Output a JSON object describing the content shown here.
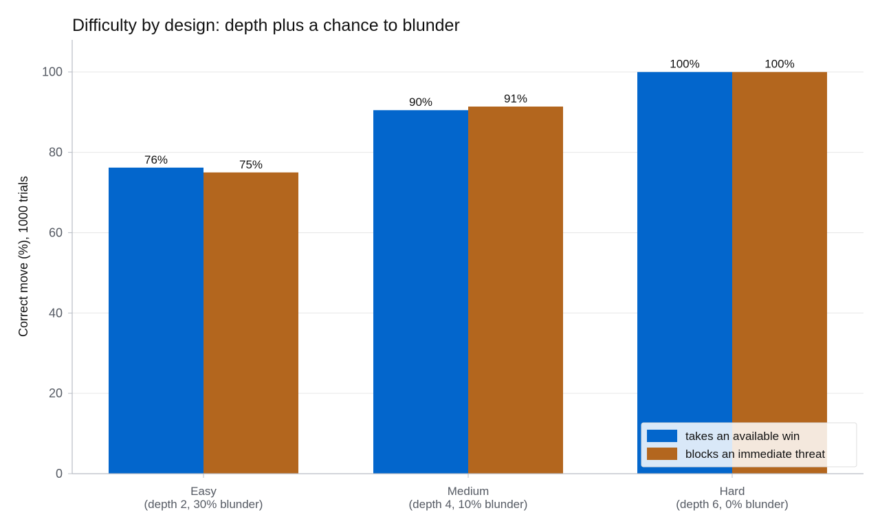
{
  "chart_data": {
    "type": "bar",
    "title": "Difficulty by design: depth plus a chance to blunder",
    "ylabel": "Correct move (%), 1000 trials",
    "xlabel": "",
    "ylim": [
      0,
      108
    ],
    "yticks": [
      0,
      20,
      40,
      60,
      80,
      100
    ],
    "grid": "horizontal",
    "legend_position": "bottom-right",
    "categories": [
      {
        "line1": "Easy",
        "line2": "(depth 2, 30% blunder)"
      },
      {
        "line1": "Medium",
        "line2": "(depth 4, 10% blunder)"
      },
      {
        "line1": "Hard",
        "line2": "(depth 6, 0% blunder)"
      }
    ],
    "series": [
      {
        "name": "takes an available win",
        "color": "#0366cc",
        "values": [
          76.2,
          90.5,
          100
        ],
        "labels": [
          "76%",
          "90%",
          "100%"
        ]
      },
      {
        "name": "blocks an immediate threat",
        "color": "#b3661e",
        "values": [
          75.0,
          91.4,
          100
        ],
        "labels": [
          "75%",
          "91%",
          "100%"
        ]
      }
    ]
  }
}
